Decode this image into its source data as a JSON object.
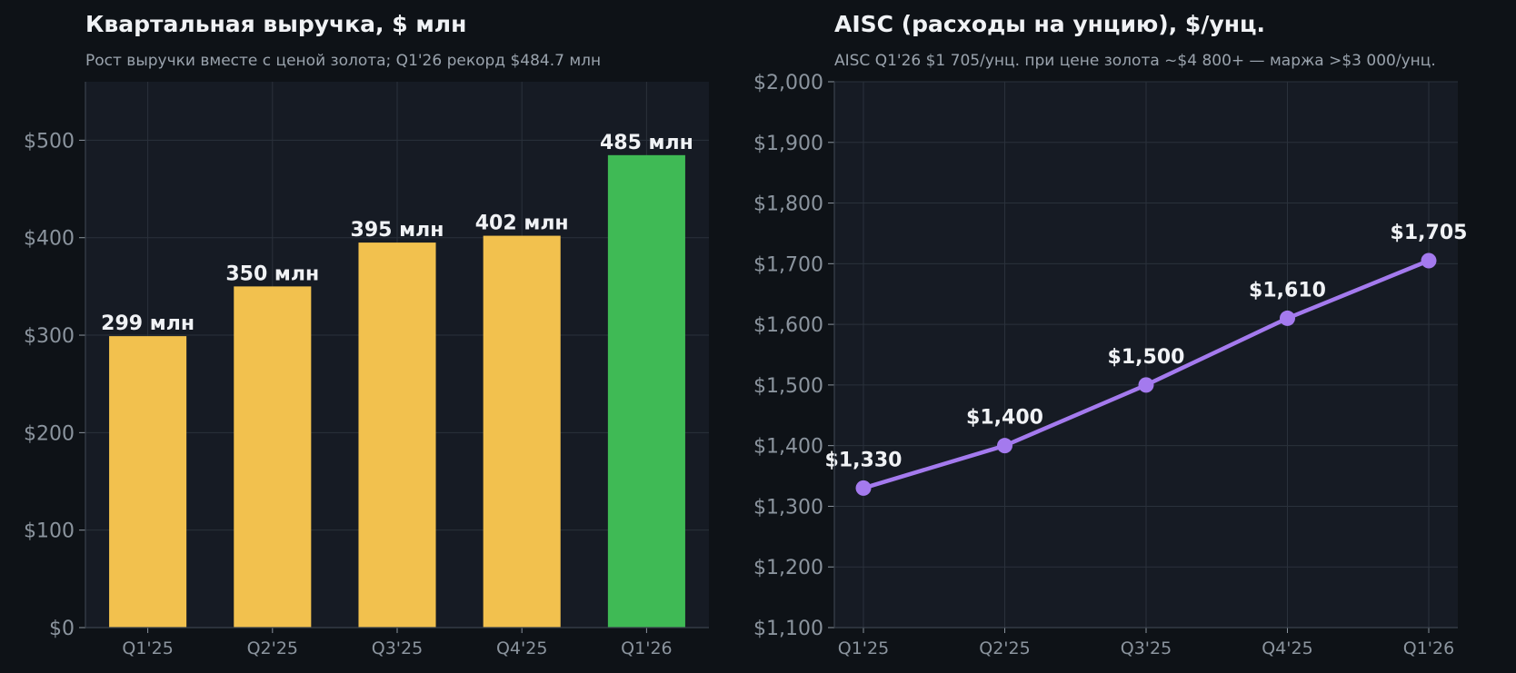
{
  "colors": {
    "page_bg": "#0e1217",
    "plot_bg": "#161b24",
    "grid": "#2a313b",
    "bar": "#f2c14e",
    "bar_highlight": "#3fba55",
    "line": "#a47aee",
    "text": "#f0f2f5",
    "muted": "#9aa3ad"
  },
  "chart_data": [
    {
      "type": "bar",
      "title": "Квартальная выручка, $ млн",
      "subtitle": "Рост выручки вместе с ценой золота; Q1'26 рекорд $484.7 млн",
      "xlabel": "",
      "ylabel": "",
      "categories": [
        "Q1'25",
        "Q2'25",
        "Q3'25",
        "Q4'25",
        "Q1'26"
      ],
      "values": [
        299,
        350,
        395,
        402,
        484.7
      ],
      "data_labels": [
        "299 млн",
        "350 млн",
        "395 млн",
        "402 млн",
        "485 млн"
      ],
      "highlight_index": 4,
      "ylim": [
        0,
        560
      ],
      "yticks": [
        0,
        100,
        200,
        300,
        400,
        500
      ],
      "ytick_labels": [
        "$0",
        "$100",
        "$200",
        "$300",
        "$400",
        "$500"
      ],
      "grid": true
    },
    {
      "type": "line",
      "title": "AISC (расходы на унцию), $/унц.",
      "subtitle": "AISC Q1'26 $1 705/унц. при цене золота ~$4 800+ — маржа >$3 000/унц.",
      "xlabel": "",
      "ylabel": "",
      "categories": [
        "Q1'25",
        "Q2'25",
        "Q3'25",
        "Q4'25",
        "Q1'26"
      ],
      "values": [
        1330,
        1400,
        1500,
        1610,
        1705
      ],
      "data_labels": [
        "$1,330",
        "$1,400",
        "$1,500",
        "$1,610",
        "$1,705"
      ],
      "ylim": [
        1100,
        2000
      ],
      "yticks": [
        1100,
        1200,
        1300,
        1400,
        1500,
        1600,
        1700,
        1800,
        1900,
        2000
      ],
      "ytick_labels": [
        "$1,100",
        "$1,200",
        "$1,300",
        "$1,400",
        "$1,500",
        "$1,600",
        "$1,700",
        "$1,800",
        "$1,900",
        "$2,000"
      ],
      "grid": true
    }
  ]
}
